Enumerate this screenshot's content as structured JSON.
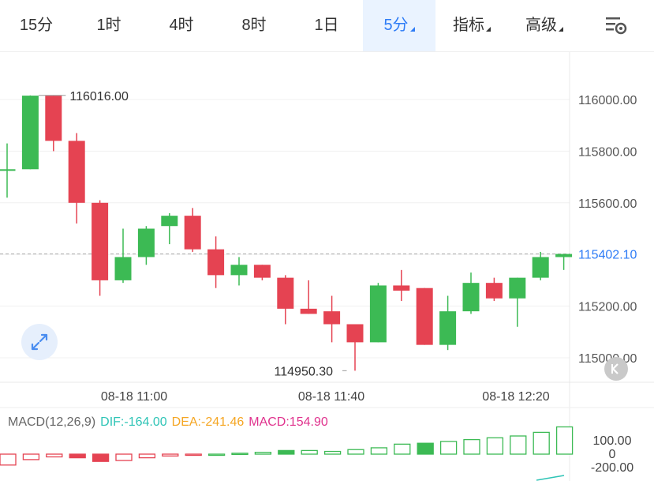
{
  "tabs": [
    {
      "label": "15分",
      "dropdown": false,
      "active": false
    },
    {
      "label": "1时",
      "dropdown": false,
      "active": false
    },
    {
      "label": "4时",
      "dropdown": false,
      "active": false
    },
    {
      "label": "8时",
      "dropdown": false,
      "active": false
    },
    {
      "label": "1日",
      "dropdown": false,
      "active": false
    },
    {
      "label": "5分",
      "dropdown": true,
      "active": true
    },
    {
      "label": "指标",
      "dropdown": true,
      "active": false
    },
    {
      "label": "高级",
      "dropdown": true,
      "active": false
    }
  ],
  "icons": {
    "settings": "chart-settings-icon",
    "expand": "expand-icon",
    "collapse": "collapse-icon"
  },
  "colors": {
    "up": "#3cba54",
    "down": "#e54352",
    "accent": "#2e7cf6",
    "dif": "#2ec4b6",
    "dea": "#f5a623",
    "macd": "#e0338e"
  },
  "chart_data": [
    {
      "type": "candlestick",
      "time_labels": [
        "08-18 11:00",
        "08-18 11:40",
        "08-18 12:20"
      ],
      "y_ticks": [
        115000,
        115200,
        115400,
        115600,
        115800,
        116000
      ],
      "y_tick_labels": [
        "115000.00",
        "115200.00",
        "115600.00",
        "115800.00",
        "116000.00"
      ],
      "ylim": [
        114900,
        116100
      ],
      "current_price": "115402.10",
      "high_label": "116016.00",
      "low_label": "114950.30",
      "candles": [
        {
          "o": 115730,
          "h": 115830,
          "l": 115620,
          "c": 115730
        },
        {
          "o": 115730,
          "h": 116016,
          "l": 115730,
          "c": 116015
        },
        {
          "o": 116015,
          "h": 116015,
          "l": 115800,
          "c": 115840
        },
        {
          "o": 115840,
          "h": 115870,
          "l": 115520,
          "c": 115600
        },
        {
          "o": 115600,
          "h": 115610,
          "l": 115240,
          "c": 115300
        },
        {
          "o": 115300,
          "h": 115500,
          "l": 115290,
          "c": 115390
        },
        {
          "o": 115390,
          "h": 115510,
          "l": 115360,
          "c": 115500
        },
        {
          "o": 115510,
          "h": 115560,
          "l": 115440,
          "c": 115550
        },
        {
          "o": 115550,
          "h": 115580,
          "l": 115410,
          "c": 115420
        },
        {
          "o": 115420,
          "h": 115470,
          "l": 115270,
          "c": 115320
        },
        {
          "o": 115320,
          "h": 115390,
          "l": 115280,
          "c": 115360
        },
        {
          "o": 115360,
          "h": 115360,
          "l": 115300,
          "c": 115310
        },
        {
          "o": 115310,
          "h": 115320,
          "l": 115130,
          "c": 115190
        },
        {
          "o": 115190,
          "h": 115300,
          "l": 115170,
          "c": 115170
        },
        {
          "o": 115180,
          "h": 115240,
          "l": 115060,
          "c": 115130
        },
        {
          "o": 115130,
          "h": 115130,
          "l": 114950,
          "c": 115060
        },
        {
          "o": 115060,
          "h": 115290,
          "l": 115060,
          "c": 115280
        },
        {
          "o": 115280,
          "h": 115340,
          "l": 115220,
          "c": 115260
        },
        {
          "o": 115270,
          "h": 115270,
          "l": 115050,
          "c": 115050
        },
        {
          "o": 115050,
          "h": 115240,
          "l": 115030,
          "c": 115180
        },
        {
          "o": 115180,
          "h": 115330,
          "l": 115170,
          "c": 115290
        },
        {
          "o": 115290,
          "h": 115310,
          "l": 115220,
          "c": 115230
        },
        {
          "o": 115230,
          "h": 115310,
          "l": 115120,
          "c": 115310
        },
        {
          "o": 115310,
          "h": 115410,
          "l": 115300,
          "c": 115390
        },
        {
          "o": 115390,
          "h": 115400,
          "l": 115340,
          "c": 115402
        }
      ]
    },
    {
      "type": "bar",
      "name": "MACD(12,26,9)",
      "dif_label": "DIF:-164.00",
      "dea_label": "DEA:-241.46",
      "macd_label": "MACD:154.90",
      "y_tick_labels": [
        "100.00",
        "0",
        "-200.00"
      ],
      "values": [
        -60,
        -30,
        -15,
        -20,
        -40,
        -35,
        -20,
        -10,
        -5,
        0,
        5,
        10,
        20,
        20,
        15,
        25,
        35,
        55,
        60,
        70,
        80,
        90,
        100,
        120,
        150
      ]
    }
  ]
}
